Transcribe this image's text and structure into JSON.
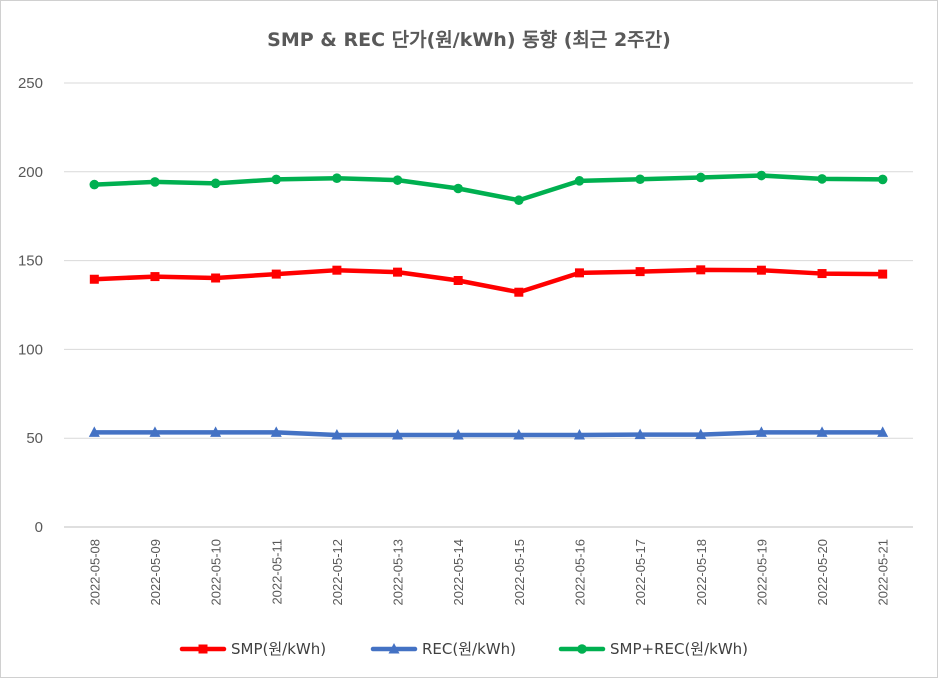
{
  "chart_data": {
    "type": "line",
    "title": "SMP & REC 단가(원/kWh) 동향 (최근 2주간)",
    "xlabel": "",
    "ylabel": "",
    "ylim": [
      0,
      250
    ],
    "yticks": [
      0,
      50,
      100,
      150,
      200,
      250
    ],
    "grid": true,
    "legend_position": "bottom",
    "categories": [
      "2022-05-08",
      "2022-05-09",
      "2022-05-10",
      "2022-05-11",
      "2022-05-12",
      "2022-05-13",
      "2022-05-14",
      "2022-05-15",
      "2022-05-16",
      "2022-05-17",
      "2022-05-18",
      "2022-05-19",
      "2022-05-20",
      "2022-05-21"
    ],
    "series": [
      {
        "name": "SMP(원/kWh)",
        "color": "#ff0000",
        "marker": "square",
        "values": [
          139.5,
          141.0,
          140.2,
          142.4,
          144.6,
          143.5,
          138.8,
          132.2,
          143.1,
          143.8,
          144.8,
          144.6,
          142.7,
          142.4
        ]
      },
      {
        "name": "REC(원/kWh)",
        "color": "#4472c4",
        "marker": "triangle",
        "values": [
          53.3,
          53.3,
          53.3,
          53.3,
          51.8,
          51.8,
          51.8,
          51.8,
          51.8,
          52.0,
          52.0,
          53.3,
          53.3,
          53.3
        ]
      },
      {
        "name": "SMP+REC(원/kWh)",
        "color": "#00b050",
        "marker": "circle",
        "values": [
          192.8,
          194.3,
          193.5,
          195.7,
          196.4,
          195.3,
          190.6,
          184.0,
          194.9,
          195.8,
          196.8,
          197.9,
          196.0,
          195.7
        ]
      }
    ]
  }
}
